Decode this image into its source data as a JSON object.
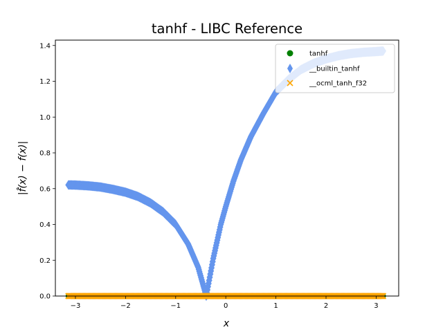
{
  "chart_data": {
    "type": "scatter",
    "title": "tanhf - LIBC Reference",
    "xlabel": "x",
    "ylabel": "|f̂(x) − f(x)|",
    "xlim": [
      -3.4,
      3.45
    ],
    "ylim": [
      0.0,
      1.43
    ],
    "xticks": [
      -3,
      -2,
      -1,
      0,
      1,
      2,
      3
    ],
    "xtick_labels": [
      "−3",
      "−2",
      "−1",
      "0",
      "1",
      "2",
      "3"
    ],
    "yticks": [
      0.0,
      0.2,
      0.4,
      0.6,
      0.8,
      1.0,
      1.2,
      1.4
    ],
    "ytick_labels": [
      "0.0",
      "0.2",
      "0.4",
      "0.6",
      "0.8",
      "1.0",
      "1.2",
      "1.4"
    ],
    "grid": false,
    "legend_position": "top-right",
    "series": [
      {
        "name": "tanhf",
        "marker": "circle",
        "color": "#008000",
        "x": [
          -3.14,
          -2.5,
          -2.0,
          -1.5,
          -1.0,
          -0.5,
          0.0,
          0.5,
          1.0,
          1.5,
          2.0,
          2.5,
          3.14
        ],
        "y": [
          0,
          0,
          0,
          0,
          0,
          0,
          0,
          0,
          0,
          0,
          0,
          0,
          0
        ]
      },
      {
        "name": "__builtin_tanhf",
        "marker": "diamond",
        "color": "#6495ED",
        "x": [
          -3.14,
          -3.0,
          -2.75,
          -2.5,
          -2.25,
          -2.0,
          -1.75,
          -1.5,
          -1.25,
          -1.0,
          -0.75,
          -0.55,
          -0.39,
          -0.25,
          -0.1,
          0.0,
          0.15,
          0.3,
          0.5,
          0.75,
          1.0,
          1.25,
          1.5,
          1.75,
          2.0,
          2.25,
          2.5,
          2.75,
          3.0,
          3.14
        ],
        "y": [
          0.621,
          0.62,
          0.616,
          0.609,
          0.596,
          0.58,
          0.556,
          0.52,
          0.47,
          0.4,
          0.29,
          0.16,
          0.0,
          0.21,
          0.4,
          0.5,
          0.64,
          0.76,
          0.89,
          1.02,
          1.14,
          1.21,
          1.265,
          1.3,
          1.325,
          1.343,
          1.355,
          1.362,
          1.366,
          1.369
        ]
      },
      {
        "name": "__ocml_tanh_f32",
        "marker": "x",
        "color": "#FFA500",
        "x": [
          -3.14,
          -2.5,
          -2.0,
          -1.5,
          -1.0,
          -0.5,
          0.0,
          0.5,
          1.0,
          1.5,
          2.0,
          2.5,
          3.14
        ],
        "y": [
          0,
          0,
          0,
          0,
          0,
          0,
          0,
          0,
          0,
          0,
          0,
          0,
          0
        ]
      }
    ]
  }
}
